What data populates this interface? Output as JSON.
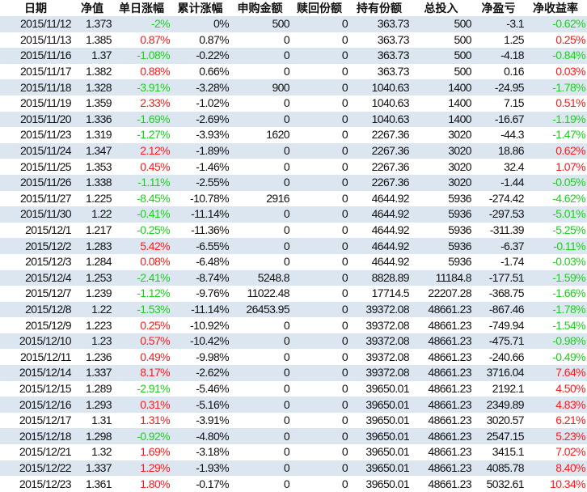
{
  "colors": {
    "positive": "#ff1a1a",
    "negative": "#1ad11a",
    "stripe": "#dce6f1"
  },
  "headers": [
    "日期",
    "净值",
    "单日涨幅",
    "累计涨幅",
    "申购金额",
    "赎回份额",
    "持有份额",
    "总投入",
    "净盈亏",
    "净收益率"
  ],
  "rows": [
    [
      "2015/11/12",
      "1.373",
      "-2%",
      "0%",
      "500",
      "0",
      "363.73",
      "500",
      "-3.1",
      "-0.62%"
    ],
    [
      "2015/11/13",
      "1.385",
      "0.87%",
      "0.87%",
      "0",
      "0",
      "363.73",
      "500",
      "1.25",
      "0.25%"
    ],
    [
      "2015/11/16",
      "1.37",
      "-1.08%",
      "-0.22%",
      "0",
      "0",
      "363.73",
      "500",
      "-4.18",
      "-0.84%"
    ],
    [
      "2015/11/17",
      "1.382",
      "0.88%",
      "0.66%",
      "0",
      "0",
      "363.73",
      "500",
      "0.16",
      "0.03%"
    ],
    [
      "2015/11/18",
      "1.328",
      "-3.91%",
      "-3.28%",
      "900",
      "0",
      "1040.63",
      "1400",
      "-24.95",
      "-1.78%"
    ],
    [
      "2015/11/19",
      "1.359",
      "2.33%",
      "-1.02%",
      "0",
      "0",
      "1040.63",
      "1400",
      "7.15",
      "0.51%"
    ],
    [
      "2015/11/20",
      "1.336",
      "-1.69%",
      "-2.69%",
      "0",
      "0",
      "1040.63",
      "1400",
      "-16.67",
      "-1.19%"
    ],
    [
      "2015/11/23",
      "1.319",
      "-1.27%",
      "-3.93%",
      "1620",
      "0",
      "2267.36",
      "3020",
      "-44.3",
      "-1.47%"
    ],
    [
      "2015/11/24",
      "1.347",
      "2.12%",
      "-1.89%",
      "0",
      "0",
      "2267.36",
      "3020",
      "18.86",
      "0.62%"
    ],
    [
      "2015/11/25",
      "1.353",
      "0.45%",
      "-1.46%",
      "0",
      "0",
      "2267.36",
      "3020",
      "32.4",
      "1.07%"
    ],
    [
      "2015/11/26",
      "1.338",
      "-1.11%",
      "-2.55%",
      "0",
      "0",
      "2267.36",
      "3020",
      "-1.44",
      "-0.05%"
    ],
    [
      "2015/11/27",
      "1.225",
      "-8.45%",
      "-10.78%",
      "2916",
      "0",
      "4644.92",
      "5936",
      "-274.42",
      "-4.62%"
    ],
    [
      "2015/11/30",
      "1.22",
      "-0.41%",
      "-11.14%",
      "0",
      "0",
      "4644.92",
      "5936",
      "-297.53",
      "-5.01%"
    ],
    [
      "2015/12/1",
      "1.217",
      "-0.25%",
      "-11.36%",
      "0",
      "0",
      "4644.92",
      "5936",
      "-311.39",
      "-5.25%"
    ],
    [
      "2015/12/2",
      "1.283",
      "5.42%",
      "-6.55%",
      "0",
      "0",
      "4644.92",
      "5936",
      "-6.37",
      "-0.11%"
    ],
    [
      "2015/12/3",
      "1.284",
      "0.08%",
      "-6.48%",
      "0",
      "0",
      "4644.92",
      "5936",
      "-1.74",
      "-0.03%"
    ],
    [
      "2015/12/4",
      "1.253",
      "-2.41%",
      "-8.74%",
      "5248.8",
      "0",
      "8828.89",
      "11184.8",
      "-177.51",
      "-1.59%"
    ],
    [
      "2015/12/7",
      "1.239",
      "-1.12%",
      "-9.76%",
      "11022.48",
      "0",
      "17714.5",
      "22207.28",
      "-368.75",
      "-1.66%"
    ],
    [
      "2015/12/8",
      "1.22",
      "-1.53%",
      "-11.14%",
      "26453.95",
      "0",
      "39372.08",
      "48661.23",
      "-867.46",
      "-1.78%"
    ],
    [
      "2015/12/9",
      "1.223",
      "0.25%",
      "-10.92%",
      "0",
      "0",
      "39372.08",
      "48661.23",
      "-749.94",
      "-1.54%"
    ],
    [
      "2015/12/10",
      "1.23",
      "0.57%",
      "-10.42%",
      "0",
      "0",
      "39372.08",
      "48661.23",
      "-475.71",
      "-0.98%"
    ],
    [
      "2015/12/11",
      "1.236",
      "0.49%",
      "-9.98%",
      "0",
      "0",
      "39372.08",
      "48661.23",
      "-240.66",
      "-0.49%"
    ],
    [
      "2015/12/14",
      "1.337",
      "8.17%",
      "-2.62%",
      "0",
      "0",
      "39372.08",
      "48661.23",
      "3716.04",
      "7.64%"
    ],
    [
      "2015/12/15",
      "1.289",
      "-2.91%",
      "-5.46%",
      "0",
      "0",
      "39650.01",
      "48661.23",
      "2192.1",
      "4.50%"
    ],
    [
      "2015/12/16",
      "1.293",
      "0.31%",
      "-5.16%",
      "0",
      "0",
      "39650.01",
      "48661.23",
      "2349.89",
      "4.83%"
    ],
    [
      "2015/12/17",
      "1.31",
      "1.31%",
      "-3.91%",
      "0",
      "0",
      "39650.01",
      "48661.23",
      "3020.57",
      "6.21%"
    ],
    [
      "2015/12/18",
      "1.298",
      "-0.92%",
      "-4.80%",
      "0",
      "0",
      "39650.01",
      "48661.23",
      "2547.15",
      "5.23%"
    ],
    [
      "2015/12/21",
      "1.32",
      "1.69%",
      "-3.18%",
      "0",
      "0",
      "39650.01",
      "48661.23",
      "3415.1",
      "7.02%"
    ],
    [
      "2015/12/22",
      "1.337",
      "1.29%",
      "-1.93%",
      "0",
      "0",
      "39650.01",
      "48661.23",
      "4085.78",
      "8.40%"
    ],
    [
      "2015/12/23",
      "1.361",
      "1.80%",
      "-0.17%",
      "0",
      "0",
      "39650.01",
      "48661.23",
      "5032.61",
      "10.34%"
    ]
  ]
}
